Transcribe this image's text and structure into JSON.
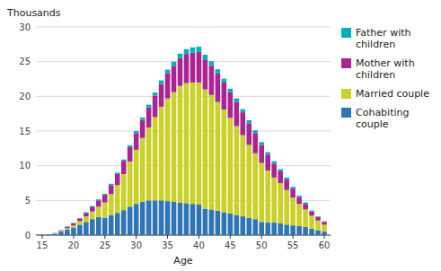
{
  "chart_data": {
    "type": "bar",
    "stacked": true,
    "x_label": "Age",
    "y_label": "Thousands",
    "x": [
      15,
      16,
      17,
      18,
      19,
      20,
      21,
      22,
      23,
      24,
      25,
      26,
      27,
      28,
      29,
      30,
      31,
      32,
      33,
      34,
      35,
      36,
      37,
      38,
      39,
      40,
      41,
      42,
      43,
      44,
      45,
      46,
      47,
      48,
      49,
      50,
      51,
      52,
      53,
      54,
      55,
      56,
      57,
      58,
      59,
      60
    ],
    "series": [
      {
        "name": "Cohabiting\ncouple",
        "color": "#2E75B6",
        "values": [
          0.05,
          0.1,
          0.2,
          0.5,
          0.8,
          1.1,
          1.5,
          1.9,
          2.3,
          2.6,
          2.5,
          2.9,
          3.2,
          3.6,
          4.1,
          4.5,
          4.8,
          5.0,
          5.0,
          5.0,
          4.9,
          4.8,
          4.7,
          4.6,
          4.5,
          4.4,
          3.8,
          3.7,
          3.5,
          3.3,
          3.1,
          2.9,
          2.7,
          2.5,
          2.3,
          1.9,
          1.8,
          1.8,
          1.7,
          1.5,
          1.4,
          1.3,
          1.2,
          0.9,
          0.7,
          0.5
        ]
      },
      {
        "name": "Married couple",
        "color": "#C9D12A",
        "values": [
          0.0,
          0.0,
          0.05,
          0.1,
          0.2,
          0.3,
          0.5,
          0.8,
          1.1,
          1.5,
          2.2,
          3.0,
          4.0,
          5.2,
          6.5,
          7.8,
          9.2,
          10.5,
          12.0,
          13.5,
          14.8,
          15.8,
          16.8,
          17.3,
          17.5,
          17.6,
          17.2,
          16.5,
          15.7,
          14.8,
          13.8,
          12.8,
          11.7,
          10.5,
          9.5,
          8.5,
          7.5,
          6.5,
          5.8,
          5.0,
          4.0,
          3.2,
          2.5,
          1.9,
          1.4,
          1.0
        ]
      },
      {
        "name": "Mother with\nchildren",
        "color": "#AA2492",
        "values": [
          0.0,
          0.0,
          0.05,
          0.1,
          0.2,
          0.3,
          0.4,
          0.5,
          0.7,
          0.9,
          1.1,
          1.3,
          1.6,
          1.9,
          2.1,
          2.4,
          2.6,
          2.9,
          3.1,
          3.3,
          3.6,
          3.8,
          4.0,
          4.2,
          4.3,
          4.4,
          4.3,
          4.2,
          4.1,
          3.9,
          3.7,
          3.5,
          3.3,
          3.1,
          2.9,
          2.6,
          2.3,
          2.0,
          1.7,
          1.5,
          1.3,
          1.0,
          0.8,
          0.6,
          0.5,
          0.4
        ]
      },
      {
        "name": "Father with\nchildren",
        "color": "#00B0B8",
        "values": [
          0.0,
          0.0,
          0.0,
          0.0,
          0.05,
          0.05,
          0.05,
          0.1,
          0.1,
          0.15,
          0.15,
          0.2,
          0.2,
          0.2,
          0.25,
          0.3,
          0.35,
          0.4,
          0.45,
          0.5,
          0.55,
          0.6,
          0.65,
          0.7,
          0.75,
          0.75,
          0.7,
          0.65,
          0.6,
          0.55,
          0.5,
          0.5,
          0.45,
          0.45,
          0.4,
          0.4,
          0.35,
          0.35,
          0.3,
          0.3,
          0.25,
          0.2,
          0.2,
          0.15,
          0.1,
          0.1
        ]
      }
    ],
    "xlim": [
      14,
      61
    ],
    "xticks": [
      15,
      20,
      25,
      30,
      35,
      40,
      45,
      50,
      55,
      60
    ],
    "ylim": [
      0,
      30
    ],
    "yticks": [
      0,
      5,
      10,
      15,
      20,
      25,
      30
    ],
    "grid": true,
    "legend": "right"
  }
}
